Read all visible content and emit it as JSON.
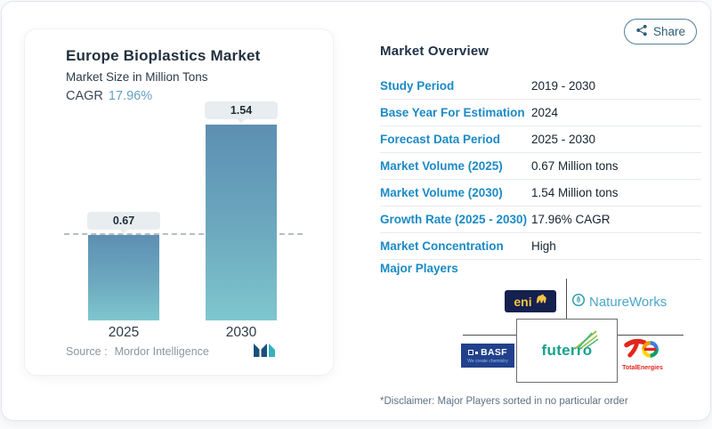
{
  "share_button": {
    "label": "Share"
  },
  "chart": {
    "title": "Europe Bioplastics Market",
    "subtitle": "Market Size in Million Tons",
    "cagr_label": "CAGR",
    "cagr_value": "17.96%",
    "source_label": "Source :",
    "source_value": "Mordor Intelligence"
  },
  "chart_data": {
    "type": "bar",
    "categories": [
      "2025",
      "2030"
    ],
    "values": [
      0.67,
      1.54
    ],
    "value_labels": [
      "0.67",
      "1.54"
    ],
    "title": "Europe Bioplastics Market",
    "ylabel": "Market Size in Million Tons",
    "cagr": "17.96%",
    "reference_line_at": 0.67,
    "ylim": [
      0,
      1.7
    ],
    "grid": "off",
    "bar_color_top": "#5d8fb2",
    "bar_color_bottom": "#7fc6ce"
  },
  "overview": {
    "title": "Market Overview",
    "rows": [
      {
        "label": "Study Period",
        "value": "2019 - 2030"
      },
      {
        "label": "Base Year For Estimation",
        "value": "2024"
      },
      {
        "label": "Forecast Data Period",
        "value": "2025 - 2030"
      },
      {
        "label": "Market Volume (2025)",
        "value": "0.67 Million tons"
      },
      {
        "label": "Market Volume (2030)",
        "value": "1.54 Million tons"
      },
      {
        "label": "Growth Rate (2025 - 2030)",
        "value": "17.96% CAGR"
      },
      {
        "label": "Market Concentration",
        "value": "High"
      }
    ],
    "major_players_label": "Major Players"
  },
  "players": {
    "eni": "eni",
    "natureworks": "NatureWorks",
    "basf": "BASF",
    "basf_tagline": "We create chemistry",
    "futerro": "futerro",
    "totalenergies": "TotalEnergies"
  },
  "disclaimer": "*Disclaimer: Major Players sorted in no particular order",
  "colors": {
    "accent_blue": "#1b8ac5",
    "heading": "#1f3246",
    "cagr_value": "#64a0c6",
    "bar_top": "#5d8fb2",
    "bar_bottom": "#7fc6ce",
    "share_border": "#54809c"
  }
}
